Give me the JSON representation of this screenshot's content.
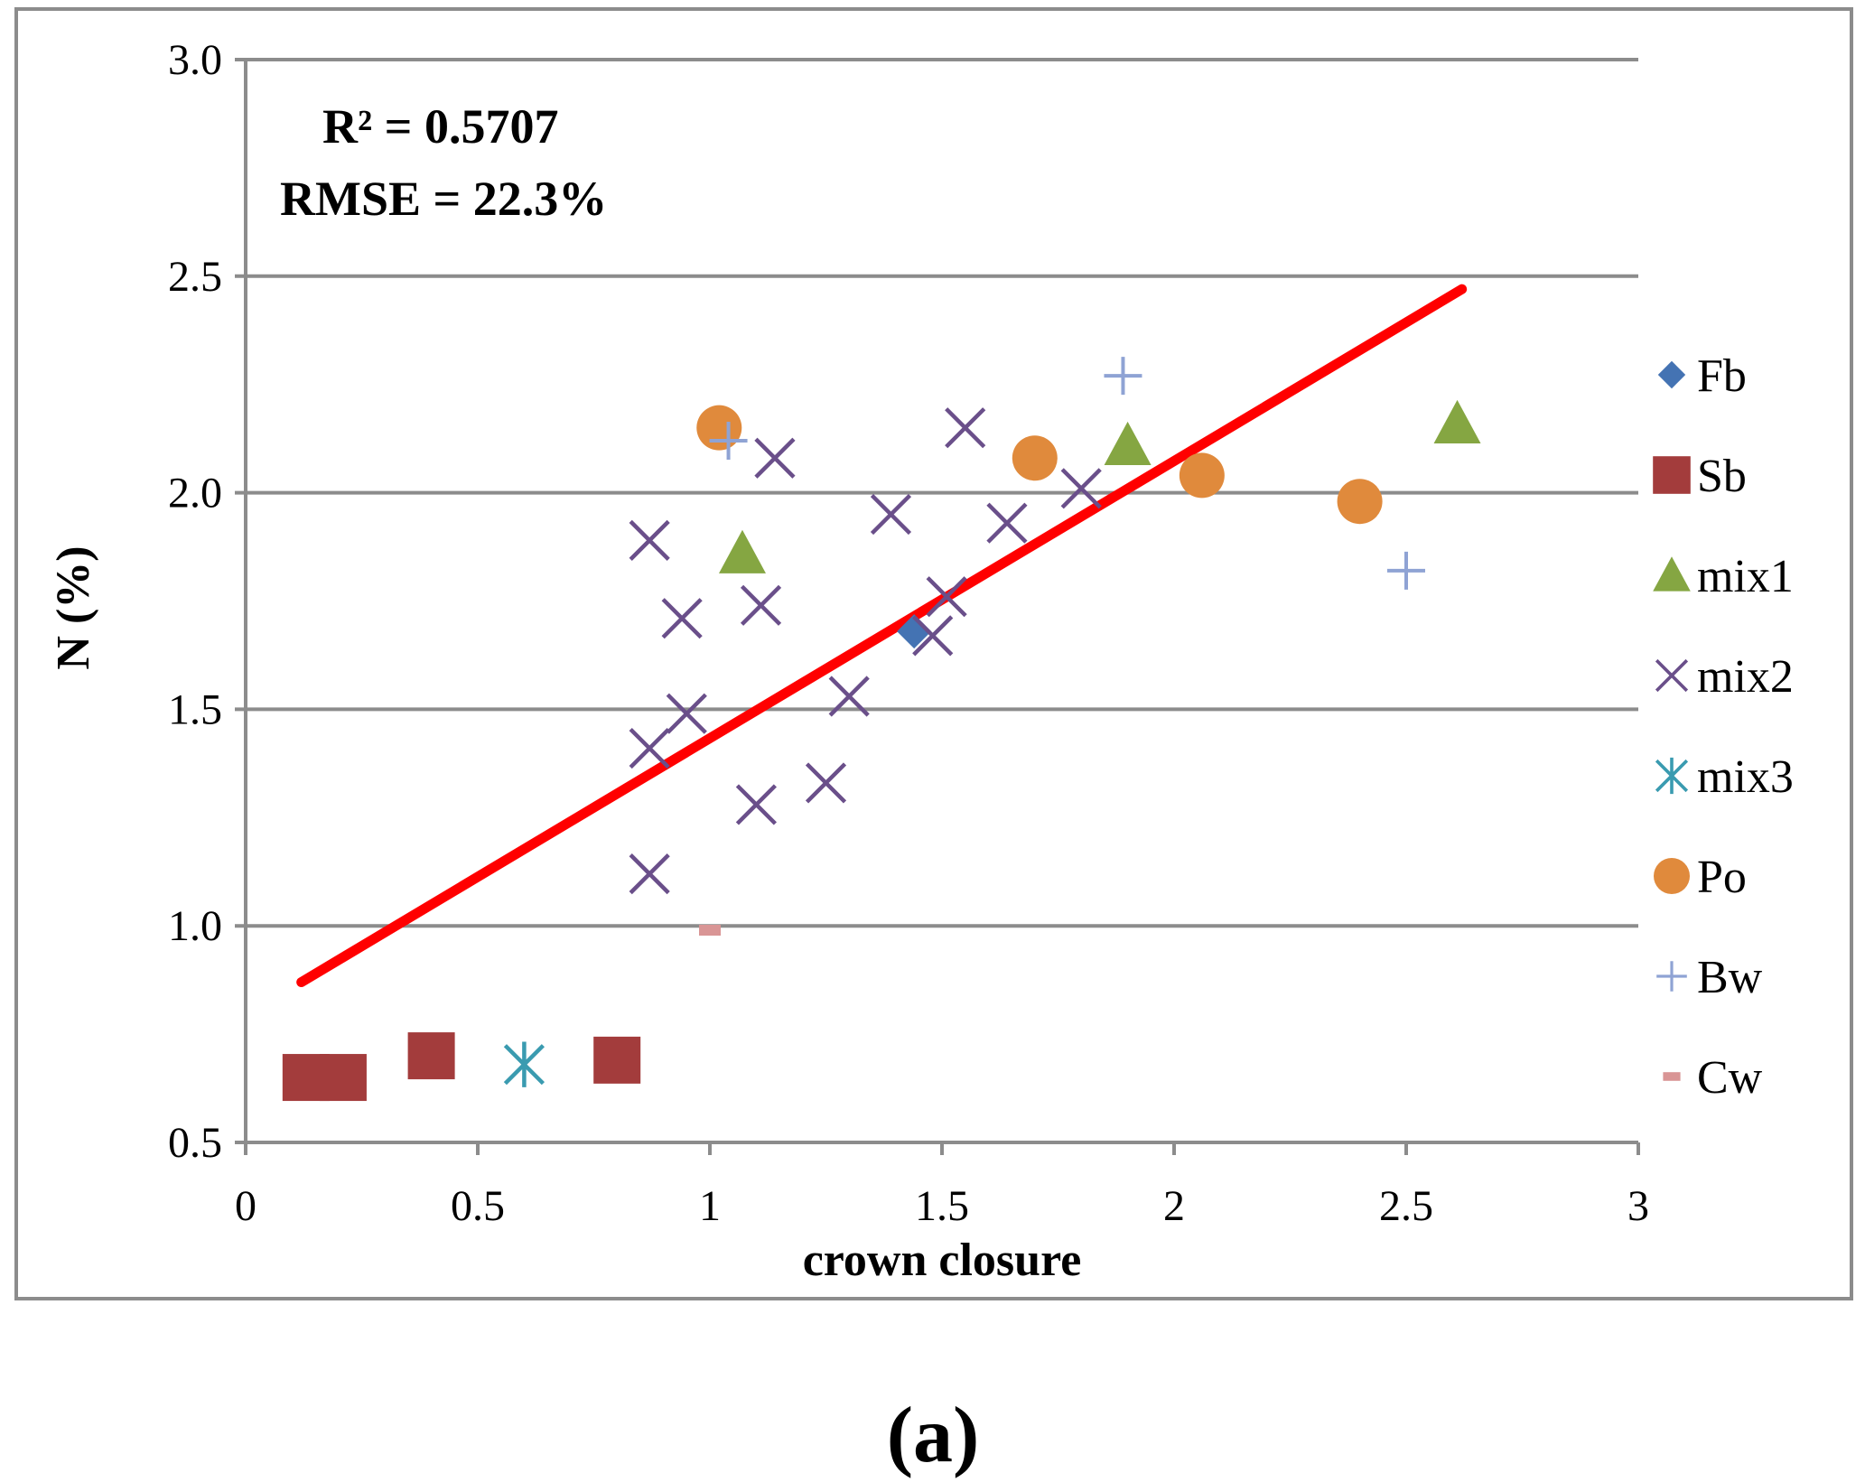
{
  "chart_data": {
    "type": "scatter",
    "xlabel": "crown closure",
    "ylabel": "N (%)",
    "xlim": [
      0,
      3
    ],
    "ylim": [
      0.5,
      3.0
    ],
    "xticks": [
      0,
      0.5,
      1,
      1.5,
      2,
      2.5,
      3
    ],
    "xtick_labels": [
      "0",
      "0.5",
      "1",
      "1.5",
      "2",
      "2.5",
      "3"
    ],
    "yticks": [
      0.5,
      1.0,
      1.5,
      2.0,
      2.5,
      3.0
    ],
    "ytick_labels": [
      "0.5",
      "1.0",
      "1.5",
      "2.0",
      "2.5",
      "3.0"
    ],
    "grid": "horizontal",
    "legend_position": "right",
    "annotations": [
      "R² = 0.5707",
      "RMSE = 22.3%"
    ],
    "caption": "(a)",
    "trendline": {
      "x": [
        0.12,
        2.62
      ],
      "y": [
        0.87,
        2.47
      ],
      "color": "#ff0000"
    },
    "series": [
      {
        "name": "Fb",
        "marker": "diamond",
        "color": "#4473b3",
        "points": [
          [
            1.44,
            1.68
          ]
        ]
      },
      {
        "name": "Sb",
        "marker": "square",
        "color": "#a33c3c",
        "points": [
          [
            0.13,
            0.65
          ],
          [
            0.21,
            0.65
          ],
          [
            0.4,
            0.7
          ],
          [
            0.8,
            0.69
          ]
        ]
      },
      {
        "name": "mix1",
        "marker": "triangle",
        "color": "#85a642",
        "points": [
          [
            1.07,
            1.86
          ],
          [
            1.9,
            2.11
          ],
          [
            2.61,
            2.16
          ]
        ]
      },
      {
        "name": "mix2",
        "marker": "x",
        "color": "#6a4f8a",
        "points": [
          [
            0.87,
            1.89
          ],
          [
            0.94,
            1.71
          ],
          [
            1.11,
            1.74
          ],
          [
            1.14,
            2.08
          ],
          [
            1.39,
            1.95
          ],
          [
            1.55,
            2.15
          ],
          [
            1.64,
            1.93
          ],
          [
            1.8,
            2.01
          ],
          [
            1.51,
            1.76
          ],
          [
            1.48,
            1.67
          ],
          [
            1.3,
            1.53
          ],
          [
            0.95,
            1.49
          ],
          [
            0.87,
            1.41
          ],
          [
            1.1,
            1.28
          ],
          [
            1.25,
            1.33
          ],
          [
            0.87,
            1.12
          ]
        ]
      },
      {
        "name": "mix3",
        "marker": "asterisk",
        "color": "#3a9bb0",
        "points": [
          [
            0.6,
            0.68
          ]
        ]
      },
      {
        "name": "Po",
        "marker": "circle",
        "color": "#e08a3c",
        "points": [
          [
            1.02,
            2.15
          ],
          [
            1.7,
            2.08
          ],
          [
            2.06,
            2.04
          ],
          [
            2.4,
            1.98
          ]
        ]
      },
      {
        "name": "Bw",
        "marker": "plus",
        "color": "#8fa3d4",
        "points": [
          [
            1.04,
            2.12
          ],
          [
            1.89,
            2.27
          ],
          [
            2.5,
            1.82
          ]
        ]
      },
      {
        "name": "Cw",
        "marker": "dash",
        "color": "#d99595",
        "points": [
          [
            1.0,
            0.99
          ]
        ]
      }
    ]
  }
}
